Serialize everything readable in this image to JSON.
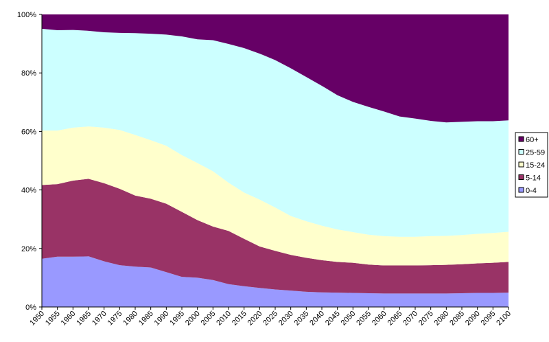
{
  "chart_data": {
    "type": "area",
    "stacked": "percent",
    "x": [
      1950,
      1955,
      1960,
      1965,
      1970,
      1975,
      1980,
      1985,
      1990,
      1995,
      2000,
      2005,
      2010,
      2015,
      2020,
      2025,
      2030,
      2035,
      2040,
      2045,
      2050,
      2055,
      2060,
      2065,
      2070,
      2075,
      2080,
      2085,
      2090,
      2095,
      2100
    ],
    "x_tick_labels": [
      "1950",
      "1955",
      "1960",
      "1965",
      "1970",
      "1975",
      "1980",
      "1985",
      "1990",
      "1995",
      "2000",
      "2005",
      "2010",
      "2015",
      "2020",
      "2025",
      "2030",
      "2035",
      "2040",
      "2045",
      "2050",
      "2055",
      "2060",
      "2065",
      "2070",
      "2075",
      "2080",
      "2085",
      "2090",
      "2095",
      "2100"
    ],
    "y_tick_labels": [
      "0%",
      "20%",
      "40%",
      "60%",
      "80%",
      "100%"
    ],
    "ylim": [
      0,
      100
    ],
    "grid": false,
    "legend_position": "right",
    "series": [
      {
        "name": "0-4",
        "color": "#9999FF",
        "values": [
          16.5,
          17.2,
          17.2,
          17.3,
          15.6,
          14.3,
          13.8,
          13.5,
          11.9,
          10.3,
          10.0,
          9.2,
          7.8,
          7.1,
          6.5,
          6.0,
          5.6,
          5.2,
          5.0,
          4.9,
          4.8,
          4.7,
          4.6,
          4.6,
          4.6,
          4.6,
          4.6,
          4.7,
          4.8,
          4.8,
          4.9
        ]
      },
      {
        "name": "5-14",
        "color": "#993366",
        "values": [
          25.2,
          24.8,
          26.0,
          26.5,
          26.7,
          26.1,
          24.3,
          23.5,
          23.4,
          22.2,
          19.7,
          18.3,
          18.2,
          16.2,
          14.2,
          13.2,
          12.2,
          11.6,
          11.0,
          10.5,
          10.3,
          9.8,
          9.6,
          9.6,
          9.6,
          9.7,
          9.8,
          9.9,
          10.1,
          10.3,
          10.5
        ]
      },
      {
        "name": "15-24",
        "color": "#FFFFCC",
        "values": [
          18.6,
          18.3,
          18.1,
          17.9,
          19.0,
          20.1,
          20.7,
          20.0,
          19.8,
          19.4,
          19.5,
          18.9,
          16.5,
          15.8,
          16.0,
          14.8,
          13.3,
          12.5,
          11.8,
          11.1,
          10.5,
          10.2,
          10.0,
          9.8,
          9.8,
          9.9,
          9.9,
          10.0,
          10.1,
          10.2,
          10.3
        ]
      },
      {
        "name": "25-59",
        "color": "#CCFFFF",
        "values": [
          34.8,
          34.3,
          33.4,
          32.7,
          32.6,
          33.2,
          34.8,
          36.4,
          38.0,
          40.6,
          42.3,
          44.8,
          47.4,
          49.4,
          49.9,
          50.4,
          50.5,
          49.3,
          47.8,
          45.9,
          44.5,
          43.7,
          42.6,
          41.1,
          40.4,
          39.4,
          38.8,
          38.7,
          38.5,
          38.2,
          38.1
        ]
      },
      {
        "name": "60+",
        "color": "#660066",
        "values": [
          4.9,
          5.4,
          5.3,
          5.6,
          6.1,
          6.3,
          6.4,
          6.6,
          6.9,
          7.5,
          8.5,
          8.8,
          10.1,
          11.5,
          13.4,
          15.6,
          18.4,
          21.4,
          24.4,
          27.6,
          29.9,
          31.6,
          33.2,
          34.9,
          35.6,
          36.4,
          36.9,
          36.7,
          36.5,
          36.5,
          36.2
        ]
      }
    ]
  }
}
